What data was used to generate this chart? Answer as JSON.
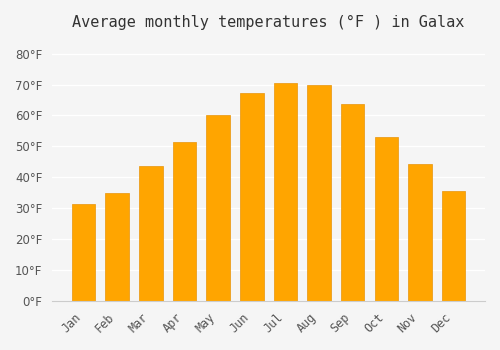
{
  "title": "Average monthly temperatures (°F ) in Galax",
  "months": [
    "Jan",
    "Feb",
    "Mar",
    "Apr",
    "May",
    "Jun",
    "Jul",
    "Aug",
    "Sep",
    "Oct",
    "Nov",
    "Dec"
  ],
  "values": [
    31.5,
    34.9,
    43.7,
    51.5,
    60.3,
    67.1,
    70.5,
    69.9,
    63.7,
    53.1,
    44.3,
    35.6
  ],
  "bar_color": "#FFA500",
  "bar_edge_color": "#E8940A",
  "ylim": [
    0,
    85
  ],
  "yticks": [
    0,
    10,
    20,
    30,
    40,
    50,
    60,
    70,
    80
  ],
  "background_color": "#f5f5f5",
  "grid_color": "#ffffff",
  "title_fontsize": 11,
  "tick_fontsize": 8.5
}
